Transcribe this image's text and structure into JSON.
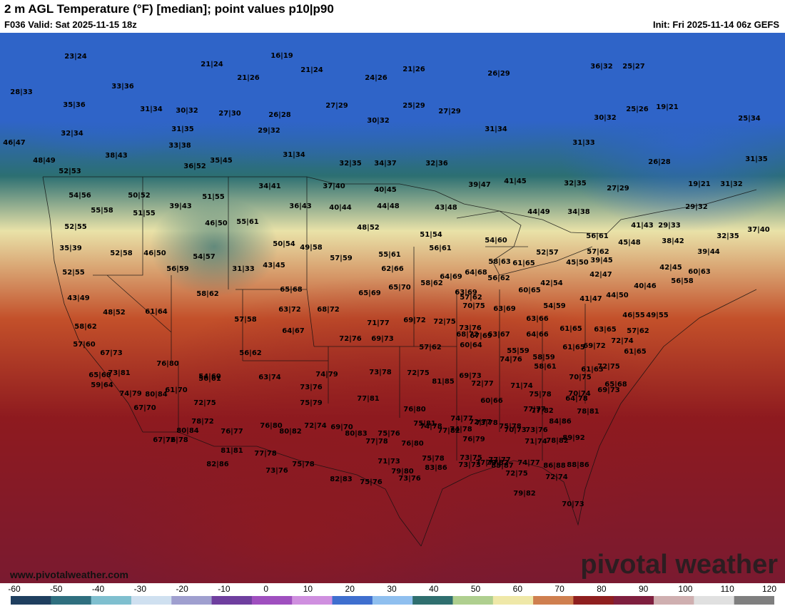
{
  "header": {
    "title": "2 m AGL Temperature (°F) [median]; point values p10|p90",
    "valid": "F036 Valid: Sat 2025-11-15 18z",
    "init": "Init: Fri 2025-11-14 06z GEFS"
  },
  "branding": {
    "watermark": "pivotal weather",
    "site": "www.pivotalweather.com"
  },
  "colorbar": {
    "ticks": [
      "-60",
      "-50",
      "-40",
      "-30",
      "-20",
      "-10",
      "0",
      "10",
      "20",
      "30",
      "40",
      "50",
      "60",
      "70",
      "80",
      "90",
      "100",
      "110",
      "120"
    ],
    "stops": [
      "#1f3f5f",
      "#2f6f7f",
      "#7fbfcf",
      "#cfe0f0",
      "#9f9fcf",
      "#6f3f9f",
      "#9f4fbf",
      "#cf8fdf",
      "#3f6fcf",
      "#8fbfef",
      "#2f6f6f",
      "#afcf8f",
      "#efe8a8",
      "#cf7f4f",
      "#8f1f1f",
      "#7f1f3f",
      "#cfafb0",
      "#e0e0e0",
      "#7f7f7f"
    ]
  },
  "map": {
    "colors": {
      "cold": "#2f64c8",
      "cool": "#2c6f72",
      "mild": "#e9e2a8",
      "warm": "#c3502a",
      "hot": "#8e1a1f",
      "deep": "#7a1a30"
    },
    "points": [
      "23|24",
      "21|24",
      "16|19",
      "21|24",
      "21|26",
      "26|29",
      "36|32",
      "25|27",
      "28|33",
      "33|36",
      "21|26",
      "24|26",
      "35|36",
      "31|34",
      "30|32",
      "27|30",
      "26|28",
      "27|29",
      "30|32",
      "25|29",
      "27|29",
      "31|34",
      "30|32",
      "25|26",
      "19|21",
      "25|34",
      "32|34",
      "31|35",
      "29|32",
      "46|47",
      "33|38",
      "38|43",
      "31|34",
      "31|33",
      "48|49",
      "36|52",
      "35|45",
      "32|35",
      "34|37",
      "32|36",
      "26|28",
      "31|35",
      "52|53",
      "34|41",
      "37|40",
      "40|45",
      "39|47",
      "41|45",
      "32|35",
      "27|29",
      "19|21",
      "31|32",
      "54|56",
      "50|52",
      "39|43",
      "51|55",
      "36|43",
      "40|44",
      "44|48",
      "43|48",
      "44|49",
      "34|38",
      "29|32",
      "55|58",
      "51|55",
      "46|50",
      "55|61",
      "48|52",
      "51|54",
      "52|55",
      "41|43",
      "29|33",
      "32|35",
      "37|40",
      "35|39",
      "52|58",
      "46|50",
      "54|57",
      "50|54",
      "49|58",
      "55|61",
      "56|61",
      "54|60",
      "56|61",
      "38|42",
      "31|33",
      "43|45",
      "57|59",
      "58|63",
      "61|65",
      "57|62",
      "45|48",
      "39|44",
      "52|55",
      "56|59",
      "62|66",
      "64|69",
      "64|68",
      "56|62",
      "52|57",
      "45|50",
      "39|45",
      "42|45",
      "60|63",
      "65|68",
      "65|69",
      "65|70",
      "58|62",
      "57|62",
      "42|54",
      "42|47",
      "40|46",
      "56|58",
      "58|62",
      "43|49",
      "48|52",
      "61|64",
      "63|72",
      "68|72",
      "63|69",
      "60|65",
      "54|59",
      "41|47",
      "44|50",
      "57|58",
      "70|75",
      "63|69",
      "46|55",
      "49|55",
      "58|62",
      "64|67",
      "71|77",
      "69|72",
      "72|75",
      "73|76",
      "63|66",
      "61|65",
      "63|65",
      "57|62",
      "57|60",
      "72|76",
      "69|73",
      "68|72",
      "63|67",
      "64|66",
      "67|69",
      "55|59",
      "61|65",
      "72|74",
      "67|73",
      "56|62",
      "57|62",
      "60|64",
      "58|59",
      "69|72",
      "61|65",
      "67|72",
      "54|60",
      "58|61",
      "61|63",
      "73|81",
      "76|80",
      "74|76",
      "72|75",
      "65|68",
      "56|61",
      "63|74",
      "74|79",
      "73|78",
      "72|75",
      "69|73",
      "70|75",
      "65|68",
      "59|64",
      "61|70",
      "73|76",
      "81|85",
      "72|77",
      "71|74",
      "69|73",
      "74|79",
      "80|84",
      "75|79",
      "75|78",
      "60|66",
      "64|78",
      "72|75",
      "77|81",
      "76|80",
      "74|77",
      "72|77",
      "77|77",
      "70|74",
      "67|70",
      "72|74",
      "75|81",
      "73|78",
      "75|78",
      "76|79",
      "70|73",
      "77|82",
      "78|72",
      "76|77",
      "76|80",
      "69|70",
      "74|78",
      "74|78",
      "73|76",
      "78|81",
      "76|78",
      "80|82",
      "77|78",
      "76|80",
      "77|82",
      "78|82",
      "84|86",
      "80|84",
      "80|83",
      "75|76",
      "73|75",
      "71|74",
      "77|77",
      "77|78",
      "75|78",
      "75|78",
      "77|77",
      "72|75",
      "86|88",
      "81|81",
      "71|73",
      "83|86",
      "74|77",
      "88|86",
      "89|92",
      "82|86",
      "73|76",
      "85|87",
      "75|76",
      "70|73",
      "73|76",
      "82|83",
      "79|80",
      "73|73",
      "79|82",
      "79|82",
      "72|74"
    ]
  }
}
